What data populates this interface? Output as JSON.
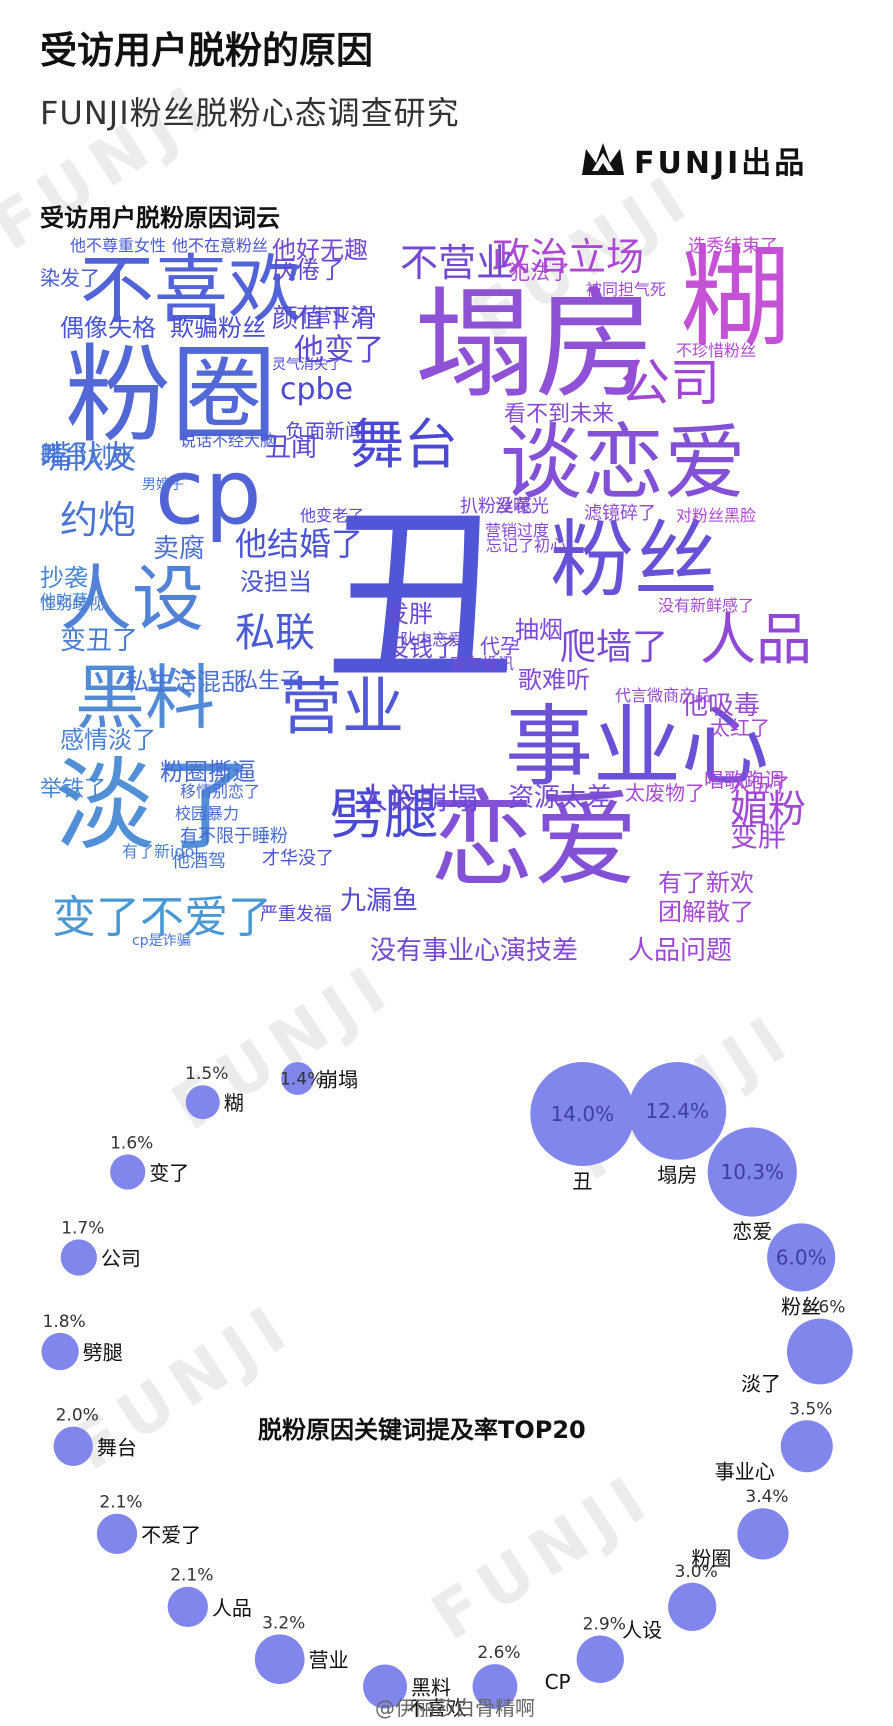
{
  "header": {
    "title": "受访用户脱粉的原因",
    "subtitle": "FUNJI粉丝脱粉心态调查研究",
    "logo_text": "FUNJI出品"
  },
  "watermark": "FUNJI",
  "wordcloud": {
    "title": "受访用户脱粉原因词云",
    "words": [
      "丑",
      "塌房",
      "粉圈",
      "恋爱",
      "淡了",
      "谈恋爱",
      "糊",
      "cp",
      "不喜欢",
      "粉丝",
      "人设",
      "黑料",
      "事业心",
      "营业",
      "舞台",
      "公司",
      "人品",
      "劈腿",
      "变了不爱了",
      "政治立场",
      "不营业",
      "媚粉",
      "爬墙了",
      "约炮",
      "嘴队友",
      "私联",
      "颜值下滑",
      "他变了",
      "他结婚了",
      "厌倦了",
      "他好无趣",
      "偶像失格",
      "欺骗粉丝",
      "cpbe",
      "丑闻",
      "舞台划水",
      "粉圈撕逼",
      "人设崩塌",
      "变丑了",
      "感情淡了",
      "抽烟",
      "资源太差",
      "变胖",
      "有了新欢",
      "团解散了",
      "没有事业心",
      "演技差",
      "人品问题",
      "歌难听",
      "他吸毒",
      "发胖",
      "没钱了",
      "抄袭",
      "卖腐",
      "没担当",
      "私生子",
      "九漏鱼",
      "选秀结束了",
      "犯法了",
      "染发了",
      "没曝光",
      "滤镜碎了",
      "太红了",
      "入伍了",
      "举铁了",
      "代孕",
      "负面新闻",
      "看不到未来",
      "太废物了",
      "他不尊重女性",
      "他不在意粉丝",
      "不营业了",
      "被同担气死",
      "不珍惜粉丝",
      "男嫂子",
      "私生活混乱",
      "扒粉丝花",
      "营销过度",
      "说话不经大脑",
      "唱歌跑调",
      "他吃草",
      "忘记了初心",
      "对粉丝黑脸",
      "他变老了",
      "没有新鲜感了",
      "队内恋爱",
      "宣布婚讯",
      "有了新idol",
      "他酒驾",
      "才华没了",
      "校园暴力",
      "有不限于睡粉",
      "严重发福",
      "cp是诈骗",
      "移情别恋了",
      "代言微商产品",
      "性别歧视",
      "灵气消失了"
    ]
  },
  "chart_data": {
    "type": "bubble",
    "title": "脱粉原因关键词提及率TOP20",
    "unit": "%",
    "categories": [
      "丑",
      "塌房",
      "恋爱",
      "粉丝",
      "淡了",
      "事业心",
      "粉圈",
      "人设",
      "CP",
      "不喜欢",
      "黑料",
      "营业",
      "人品",
      "不爱了",
      "舞台",
      "劈腿",
      "公司",
      "变了",
      "糊",
      "崩塌"
    ],
    "values": [
      14.0,
      12.4,
      10.3,
      6.0,
      5.6,
      3.5,
      3.4,
      3.0,
      2.9,
      2.6,
      null,
      3.2,
      2.1,
      2.1,
      2.0,
      1.8,
      1.7,
      1.6,
      1.5,
      1.4
    ],
    "value_labels": [
      "14.0%",
      "12.4%",
      "10.3%",
      "6.0%",
      "5.6%",
      "3.5%",
      "3.4%",
      "3.0%",
      "2.9%",
      "2.6%",
      "",
      "3.2%",
      "2.1%",
      "2.1%",
      "2.0%",
      "1.8%",
      "1.7%",
      "1.6%",
      "1.5%",
      "1.4%"
    ],
    "bubble_color": "#8086ec",
    "value_label_color": "#3f3f9e"
  },
  "credit": "@伊丽莎白骨精啊"
}
